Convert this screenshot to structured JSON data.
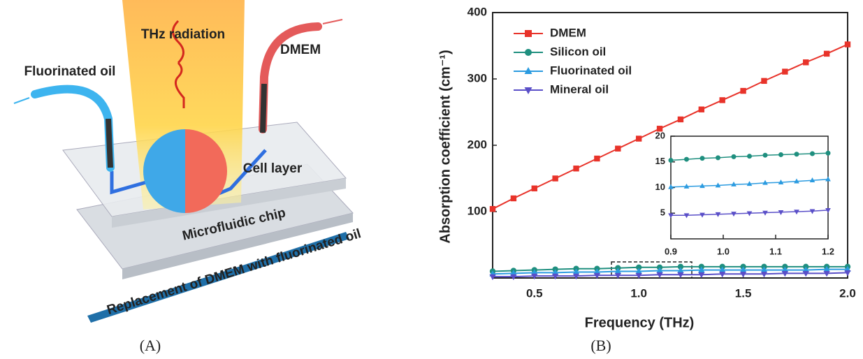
{
  "panels": {
    "a_label": "(A)",
    "b_label": "(B)"
  },
  "diagram": {
    "beam": "THz radiation",
    "outlet": "DMEM",
    "inlet": "Fluorinated oil",
    "cells": "Cell layer",
    "chip": "Microfluidic chip",
    "process": "Replacement of DMEM with fluorinated oil"
  },
  "chart_data": [
    {
      "type": "line",
      "x_label": "Frequency (THz)",
      "y_label": "Absorption coefficient (cm⁻¹)",
      "x": [
        0.3,
        0.4,
        0.5,
        0.6,
        0.7,
        0.8,
        0.9,
        1.0,
        1.1,
        1.2,
        1.3,
        1.4,
        1.5,
        1.6,
        1.7,
        1.8,
        1.9,
        2.0
      ],
      "xlim": [
        0.3,
        2.0
      ],
      "xticks": [
        0.5,
        {
          "value": 1,
          "label": "1.0"
        },
        1.5,
        {
          "value": 2,
          "label": "2.0"
        }
      ],
      "ylim": [
        0,
        400
      ],
      "yticks": [
        100,
        200,
        300,
        400
      ],
      "legend": "upper left",
      "series": [
        {
          "name": "DMEM",
          "color": "#e8332a",
          "marker": "square",
          "values": [
            104,
            120,
            135,
            150,
            165,
            180,
            195,
            210,
            225,
            239,
            254,
            268,
            282,
            297,
            311,
            325,
            338,
            352
          ]
        },
        {
          "name": "Silicon oil",
          "color": "#1f8f7f",
          "marker": "circle",
          "values": [
            10,
            11,
            12,
            13,
            14,
            14,
            15,
            16,
            16,
            17,
            17,
            17,
            17,
            17,
            17,
            17,
            17,
            17
          ]
        },
        {
          "name": "Fluorinated oil",
          "color": "#2b9be0",
          "marker": "triangle-up",
          "values": [
            6,
            7,
            8,
            8,
            9,
            9,
            10,
            10,
            11,
            11,
            12,
            12,
            12,
            12,
            12,
            12,
            13,
            13
          ]
        },
        {
          "name": "Mineral oil",
          "color": "#5a4fc8",
          "marker": "triangle-down",
          "values": [
            2,
            2,
            3,
            3,
            3,
            4,
            4,
            4,
            5,
            5,
            5,
            6,
            6,
            6,
            7,
            7,
            7,
            8
          ]
        }
      ]
    },
    {
      "type": "line",
      "x": [
        0.9,
        0.93,
        0.96,
        0.99,
        1.02,
        1.05,
        1.08,
        1.11,
        1.14,
        1.17,
        1.2
      ],
      "xlim": [
        0.9,
        1.2
      ],
      "xticks": [
        0.9,
        {
          "value": 1,
          "label": "1.0"
        },
        1.1,
        1.2
      ],
      "ylim": [
        0,
        20
      ],
      "yticks": [
        5,
        10,
        15,
        20
      ],
      "series": [
        {
          "color": "#1f8f7f",
          "marker": "circle",
          "values": [
            15.3,
            15.5,
            15.7,
            15.8,
            16.0,
            16.1,
            16.3,
            16.4,
            16.5,
            16.6,
            16.7
          ]
        },
        {
          "color": "#2b9be0",
          "marker": "triangle-up",
          "values": [
            10.1,
            10.2,
            10.3,
            10.4,
            10.6,
            10.7,
            10.9,
            11.0,
            11.2,
            11.4,
            11.6
          ]
        },
        {
          "color": "#5a4fc8",
          "marker": "triangle-down",
          "values": [
            4.6,
            4.6,
            4.7,
            4.8,
            4.9,
            5.0,
            5.1,
            5.2,
            5.3,
            5.4,
            5.6
          ]
        }
      ]
    }
  ]
}
